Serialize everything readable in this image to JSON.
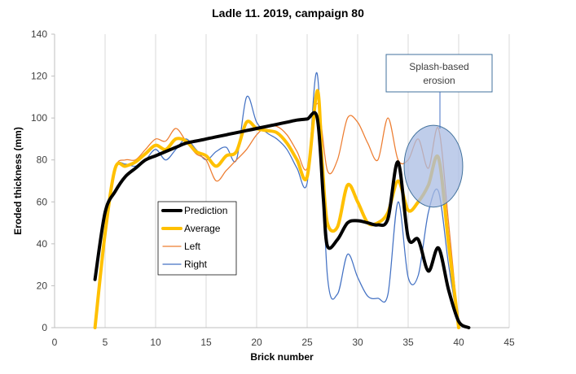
{
  "chart_data": {
    "type": "line",
    "title": "Ladle 11. 2019, campaign 80",
    "xlabel": "Brick number",
    "ylabel": "Eroded thickness (mm)",
    "xlim": [
      0,
      45
    ],
    "ylim": [
      0,
      140
    ],
    "xticks": [
      0,
      5,
      10,
      15,
      20,
      25,
      30,
      35,
      40,
      45
    ],
    "yticks": [
      0,
      20,
      40,
      60,
      80,
      100,
      120,
      140
    ],
    "grid": "vertical",
    "legend_position": "center-left",
    "series": [
      {
        "name": "Prediction",
        "color": "#000000",
        "points": [
          [
            4,
            23
          ],
          [
            5,
            55
          ],
          [
            6,
            65
          ],
          [
            7,
            72
          ],
          [
            8,
            76
          ],
          [
            9,
            80
          ],
          [
            10,
            82
          ],
          [
            11,
            84
          ],
          [
            12,
            86
          ],
          [
            13,
            88
          ],
          [
            14,
            89
          ],
          [
            15,
            90
          ],
          [
            16,
            91
          ],
          [
            17,
            92
          ],
          [
            18,
            93
          ],
          [
            19,
            94
          ],
          [
            20,
            95
          ],
          [
            21,
            96
          ],
          [
            22,
            97
          ],
          [
            23,
            98
          ],
          [
            24,
            99
          ],
          [
            25,
            99.5
          ],
          [
            26,
            100
          ],
          [
            26.6,
            62
          ],
          [
            27,
            39
          ],
          [
            28,
            42
          ],
          [
            29,
            50
          ],
          [
            30,
            51
          ],
          [
            31,
            50
          ],
          [
            32,
            49
          ],
          [
            33,
            52
          ],
          [
            34,
            79
          ],
          [
            35,
            43
          ],
          [
            36,
            42
          ],
          [
            37,
            27
          ],
          [
            38,
            38
          ],
          [
            39,
            18
          ],
          [
            40,
            3
          ],
          [
            41,
            0
          ]
        ]
      },
      {
        "name": "Average",
        "color": "#FFC000",
        "points": [
          [
            4,
            0
          ],
          [
            5,
            45
          ],
          [
            6,
            76
          ],
          [
            7,
            77
          ],
          [
            8,
            79
          ],
          [
            9,
            83
          ],
          [
            10,
            87
          ],
          [
            11,
            85
          ],
          [
            12,
            90
          ],
          [
            13,
            89
          ],
          [
            14,
            84
          ],
          [
            15,
            82
          ],
          [
            16,
            77
          ],
          [
            17,
            82
          ],
          [
            18,
            84
          ],
          [
            19,
            98
          ],
          [
            20,
            95
          ],
          [
            21,
            94
          ],
          [
            22,
            93
          ],
          [
            23,
            88
          ],
          [
            24,
            80
          ],
          [
            25,
            72
          ],
          [
            26,
            113
          ],
          [
            26.5,
            78
          ],
          [
            27,
            50
          ],
          [
            28,
            48
          ],
          [
            29,
            68
          ],
          [
            30,
            60
          ],
          [
            31,
            50
          ],
          [
            32,
            50
          ],
          [
            33,
            55
          ],
          [
            34,
            70
          ],
          [
            35,
            56
          ],
          [
            36,
            60
          ],
          [
            37,
            68
          ],
          [
            38,
            81
          ],
          [
            39,
            40
          ],
          [
            40,
            0
          ]
        ]
      },
      {
        "name": "Left",
        "color": "#ED7D31",
        "points": [
          [
            4,
            0
          ],
          [
            5,
            45
          ],
          [
            6,
            76
          ],
          [
            7,
            80
          ],
          [
            8,
            80
          ],
          [
            9,
            85
          ],
          [
            10,
            90
          ],
          [
            11,
            89
          ],
          [
            12,
            95
          ],
          [
            13,
            89
          ],
          [
            14,
            83
          ],
          [
            15,
            80
          ],
          [
            16,
            70
          ],
          [
            17,
            75
          ],
          [
            18,
            80
          ],
          [
            19,
            85
          ],
          [
            20,
            92
          ],
          [
            21,
            96
          ],
          [
            22,
            96
          ],
          [
            23,
            92
          ],
          [
            24,
            84
          ],
          [
            25,
            76
          ],
          [
            26,
            107
          ],
          [
            27,
            75
          ],
          [
            28,
            80
          ],
          [
            29,
            100
          ],
          [
            30,
            98
          ],
          [
            31,
            88
          ],
          [
            32,
            80
          ],
          [
            33,
            100
          ],
          [
            34,
            80
          ],
          [
            35,
            80
          ],
          [
            36,
            90
          ],
          [
            37,
            76
          ],
          [
            38,
            95
          ],
          [
            39,
            50
          ],
          [
            40,
            0
          ]
        ]
      },
      {
        "name": "Right",
        "color": "#4472C4",
        "points": [
          [
            4,
            0
          ],
          [
            5,
            45
          ],
          [
            6,
            76
          ],
          [
            7,
            78
          ],
          [
            8,
            77
          ],
          [
            9,
            80
          ],
          [
            10,
            85
          ],
          [
            11,
            80
          ],
          [
            12,
            85
          ],
          [
            13,
            90
          ],
          [
            14,
            85
          ],
          [
            15,
            80
          ],
          [
            16,
            84
          ],
          [
            17,
            86
          ],
          [
            18,
            80
          ],
          [
            19,
            110
          ],
          [
            20,
            98
          ],
          [
            21,
            93
          ],
          [
            22,
            90
          ],
          [
            23,
            85
          ],
          [
            24,
            76
          ],
          [
            25,
            69
          ],
          [
            26,
            121
          ],
          [
            27,
            25
          ],
          [
            28,
            16
          ],
          [
            29,
            35
          ],
          [
            30,
            24
          ],
          [
            31,
            15
          ],
          [
            32,
            14
          ],
          [
            33,
            16
          ],
          [
            34,
            60
          ],
          [
            35,
            24
          ],
          [
            36,
            25
          ],
          [
            37,
            55
          ],
          [
            38,
            65
          ],
          [
            39,
            30
          ],
          [
            40,
            0
          ]
        ]
      }
    ],
    "annotations": [
      {
        "text": [
          "Splash-based",
          "erosion"
        ],
        "ellipse_center": [
          37.5,
          77
        ],
        "ellipse_radius": [
          2.9,
          19.5
        ]
      }
    ]
  },
  "colors": {
    "ellipse_fill": "#A9BCE3",
    "ellipse_stroke": "#41719C",
    "grid": "#D9D9D9",
    "axis": "#BFBFBF"
  }
}
